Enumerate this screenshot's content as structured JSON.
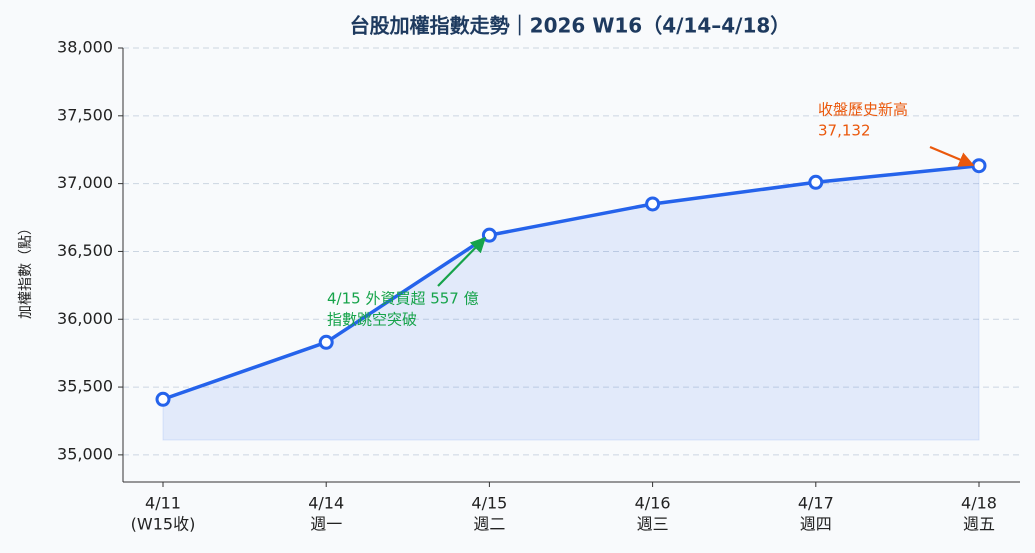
{
  "chart_data": {
    "type": "line",
    "title": "台股加權指數走勢｜2026 W16（4/14–4/18）",
    "y_label": "加權指數（點）",
    "categories": [
      "4/11",
      "4/14",
      "4/15",
      "4/16",
      "4/17",
      "4/18"
    ],
    "category_sublabels": [
      "(W15收)",
      "週一",
      "週二",
      "週三",
      "週四",
      "週五"
    ],
    "series": [
      {
        "color": "#2563eb",
        "values": [
          35410,
          35830,
          36620,
          36850,
          37010,
          37132
        ]
      }
    ],
    "ylim": [
      34800,
      38000
    ],
    "yticks": [
      {
        "value": 35000,
        "label": "35,000"
      },
      {
        "value": 35500,
        "label": "35,500"
      },
      {
        "value": 36000,
        "label": "36,000"
      },
      {
        "value": 36500,
        "label": "36,500"
      },
      {
        "value": 37000,
        "label": "37,000"
      },
      {
        "value": 37500,
        "label": "37,500"
      },
      {
        "value": 38000,
        "label": "38,000"
      }
    ],
    "grid": true,
    "annotations": [
      {
        "lines": [
          "4/15 外資買超 557 億",
          "指數跳空突破"
        ],
        "color": "#16a34a",
        "target": 2
      },
      {
        "lines": [
          "收盤歷史新高",
          "37,132"
        ],
        "color": "#ea580c",
        "target": 5
      }
    ]
  }
}
